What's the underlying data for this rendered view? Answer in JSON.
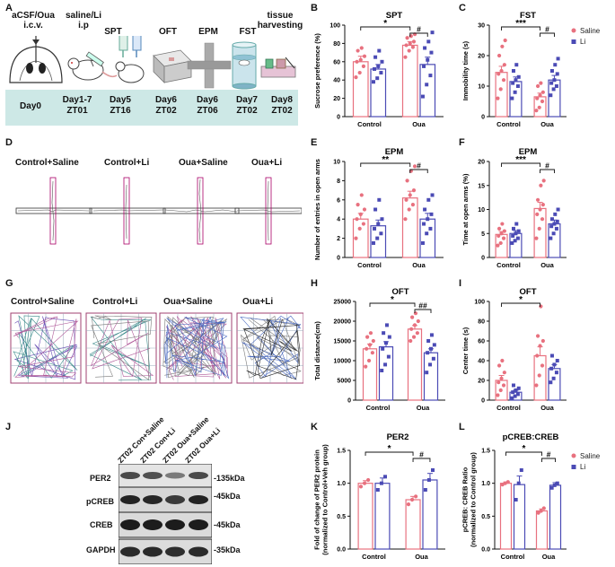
{
  "panels": {
    "A": "A",
    "B": "B",
    "C": "C",
    "D": "D",
    "E": "E",
    "F": "F",
    "G": "G",
    "H": "H",
    "I": "I",
    "J": "J",
    "K": "K",
    "L": "L"
  },
  "experiment": {
    "steps": [
      {
        "label": "aCSF/Oua\ni.c.v.",
        "day": "Day0",
        "zt": ""
      },
      {
        "label": "saline/Li\ni.p",
        "day": "Day1-7",
        "zt": "ZT01"
      },
      {
        "label": "SPT",
        "day": "Day5",
        "zt": "ZT16"
      },
      {
        "label": "OFT",
        "day": "Day6",
        "zt": "ZT02"
      },
      {
        "label": "EPM",
        "day": "Day6",
        "zt": "ZT06"
      },
      {
        "label": "FST",
        "day": "Day7",
        "zt": "ZT02"
      },
      {
        "label": "tissue\nharvesting",
        "day": "Day8",
        "zt": "ZT02"
      }
    ]
  },
  "group_labels": [
    "Control+Saline",
    "Control+Li",
    "Oua+Saline",
    "Oua+Li"
  ],
  "legend": {
    "saline": "Saline",
    "li": "Li"
  },
  "colors": {
    "saline": "#e8717f",
    "li": "#4b4bb5",
    "timeline_bg": "#cde8e6"
  },
  "blot": {
    "lanes": [
      "ZT02 Con+Saline",
      "ZT02 Con+Li",
      "ZT02 Oua+Saline",
      "ZT02 Oua+Li"
    ],
    "rows": [
      {
        "name": "PER2",
        "kda": "-135kDa"
      },
      {
        "name": "pCREB",
        "kda": "-45kDa"
      },
      {
        "name": "CREB",
        "kda": "-45kDa"
      },
      {
        "name": "GAPDH",
        "kda": "-35kDa"
      }
    ]
  },
  "chart_data": [
    {
      "id": "B",
      "type": "bar",
      "title": "SPT",
      "ylabel": "Sucrose preference (%)",
      "categories": [
        "Control",
        "Oua"
      ],
      "ylim": [
        0,
        100
      ],
      "yticks": [
        0,
        20,
        40,
        60,
        80,
        100
      ],
      "series": [
        {
          "name": "Saline",
          "values": [
            60,
            78
          ]
        },
        {
          "name": "Li",
          "values": [
            52,
            57
          ]
        }
      ],
      "errors": {
        "Saline": [
          6,
          4
        ],
        "Li": [
          5,
          8
        ]
      },
      "points": {
        "Saline": [
          [
            43,
            48,
            55,
            60,
            62,
            66,
            72,
            75
          ],
          [
            65,
            72,
            76,
            78,
            80,
            82,
            86,
            88,
            90
          ]
        ],
        "Li": [
          [
            38,
            42,
            48,
            52,
            55,
            60,
            65,
            72
          ],
          [
            22,
            35,
            45,
            55,
            62,
            70,
            75,
            82,
            92
          ]
        ]
      },
      "sig": [
        {
          "label": "*",
          "text_pos": "left"
        },
        {
          "label": "#",
          "text_pos": "right"
        }
      ]
    },
    {
      "id": "C",
      "type": "bar",
      "title": "FST",
      "ylabel": "Immobility time (s)",
      "categories": [
        "Control",
        "Oua"
      ],
      "ylim": [
        0,
        30
      ],
      "yticks": [
        0,
        10,
        20,
        30
      ],
      "series": [
        {
          "name": "Saline",
          "values": [
            14.5,
            6.5
          ]
        },
        {
          "name": "Li",
          "values": [
            11.5,
            12
          ]
        }
      ],
      "errors": {
        "Saline": [
          2,
          1.2
        ],
        "Li": [
          1.5,
          1.5
        ]
      },
      "points": {
        "Saline": [
          [
            6,
            9,
            12,
            14,
            15,
            17,
            20,
            23,
            25
          ],
          [
            2,
            3,
            5,
            6,
            7,
            8,
            10,
            11
          ]
        ],
        "Li": [
          [
            6,
            8,
            10,
            11,
            12,
            13,
            15,
            17
          ],
          [
            7,
            9,
            10,
            11,
            12,
            14,
            15,
            17,
            19
          ]
        ]
      },
      "sig": [
        {
          "label": "***",
          "text_pos": "left"
        },
        {
          "label": "#",
          "text_pos": "right"
        }
      ]
    },
    {
      "id": "E",
      "type": "bar",
      "title": "EPM",
      "ylabel": "Number of entries in open arms",
      "categories": [
        "Control",
        "Oua"
      ],
      "ylim": [
        0,
        10
      ],
      "yticks": [
        0,
        2,
        4,
        6,
        8,
        10
      ],
      "series": [
        {
          "name": "Saline",
          "values": [
            4,
            6.2
          ]
        },
        {
          "name": "Li",
          "values": [
            3.3,
            4
          ]
        }
      ],
      "errors": {
        "Saline": [
          0.6,
          0.7
        ],
        "Li": [
          0.6,
          0.6
        ]
      },
      "points": {
        "Saline": [
          [
            2,
            3,
            3.5,
            4,
            4.5,
            5,
            5.5,
            6.5
          ],
          [
            4,
            5,
            5.5,
            6,
            6.5,
            7,
            8,
            9,
            9.5
          ]
        ],
        "Li": [
          [
            1.5,
            2,
            2.5,
            3,
            3.5,
            4,
            5,
            6
          ],
          [
            1.5,
            2.5,
            3,
            3.5,
            4,
            4.5,
            5,
            6,
            6.5
          ]
        ]
      },
      "sig": [
        {
          "label": "**",
          "text_pos": "left"
        },
        {
          "label": "#",
          "text_pos": "right"
        }
      ]
    },
    {
      "id": "F",
      "type": "bar",
      "title": "EPM",
      "ylabel": "Time at open arms (%)",
      "categories": [
        "Control",
        "Oua"
      ],
      "ylim": [
        0,
        20
      ],
      "yticks": [
        0,
        5,
        10,
        15,
        20
      ],
      "series": [
        {
          "name": "Saline",
          "values": [
            4.8,
            10.2
          ]
        },
        {
          "name": "Li",
          "values": [
            5,
            7
          ]
        }
      ],
      "errors": {
        "Saline": [
          0.6,
          1.3
        ],
        "Li": [
          0.6,
          0.8
        ]
      },
      "points": {
        "Saline": [
          [
            2.5,
            3,
            4,
            4.5,
            5,
            5.5,
            6,
            7
          ],
          [
            4,
            6,
            8,
            9,
            10,
            11,
            12,
            15,
            16
          ]
        ],
        "Li": [
          [
            3,
            3.5,
            4,
            4.5,
            5,
            5.5,
            6,
            7
          ],
          [
            4,
            5,
            6,
            6.5,
            7,
            7.5,
            8,
            9,
            10
          ]
        ]
      },
      "sig": [
        {
          "label": "***",
          "text_pos": "left"
        },
        {
          "label": "#",
          "text_pos": "right"
        }
      ]
    },
    {
      "id": "H",
      "type": "bar",
      "title": "OFT",
      "ylabel": "Total distance(cm)",
      "categories": [
        "Control",
        "Oua"
      ],
      "ylim": [
        0,
        25000
      ],
      "yticks": [
        0,
        5000,
        10000,
        15000,
        20000,
        25000
      ],
      "series": [
        {
          "name": "Saline",
          "values": [
            13000,
            18000
          ]
        },
        {
          "name": "Li",
          "values": [
            13500,
            12000
          ]
        }
      ],
      "errors": {
        "Saline": [
          1200,
          900
        ],
        "Li": [
          1300,
          1000
        ]
      },
      "points": {
        "Saline": [
          [
            8500,
            10000,
            12000,
            13000,
            14000,
            15000,
            16000,
            17000
          ],
          [
            15000,
            16000,
            17000,
            18000,
            19000,
            20000,
            21000,
            22000
          ]
        ],
        "Li": [
          [
            7500,
            9000,
            11000,
            13000,
            14500,
            16000,
            17000,
            19000
          ],
          [
            7000,
            9000,
            10500,
            12000,
            13000,
            14000,
            15000,
            16500
          ]
        ]
      },
      "sig": [
        {
          "label": "*",
          "text_pos": "left"
        },
        {
          "label": "##",
          "text_pos": "right"
        }
      ]
    },
    {
      "id": "I",
      "type": "bar",
      "title": "OFT",
      "ylabel": "Center time (s)",
      "categories": [
        "Control",
        "Oua"
      ],
      "ylim": [
        0,
        100
      ],
      "yticks": [
        0,
        20,
        40,
        60,
        80,
        100
      ],
      "series": [
        {
          "name": "Saline",
          "values": [
            20,
            45
          ]
        },
        {
          "name": "Li",
          "values": [
            8,
            32
          ]
        }
      ],
      "errors": {
        "Saline": [
          5,
          9
        ],
        "Li": [
          2,
          4
        ]
      },
      "points": {
        "Saline": [
          [
            5,
            10,
            15,
            18,
            22,
            28,
            35,
            40
          ],
          [
            15,
            25,
            35,
            45,
            55,
            60,
            65,
            95
          ]
        ],
        "Li": [
          [
            2,
            4,
            6,
            8,
            10,
            12,
            15
          ],
          [
            18,
            22,
            28,
            32,
            36,
            40,
            45
          ]
        ]
      },
      "sig": [
        {
          "label": "*",
          "text_pos": "left"
        }
      ]
    },
    {
      "id": "K",
      "type": "bar",
      "title": "PER2",
      "ylabel": "Fold of change of PER2 protein\n(normalized to Control+Veh group)",
      "categories": [
        "Control",
        "Oua"
      ],
      "ylim": [
        0,
        1.5
      ],
      "yticks": [
        0.0,
        0.5,
        1.0,
        1.5
      ],
      "series": [
        {
          "name": "Saline",
          "values": [
            1.0,
            0.75
          ]
        },
        {
          "name": "Li",
          "values": [
            1.0,
            1.05
          ]
        }
      ],
      "errors": {
        "Saline": [
          0.04,
          0.05
        ],
        "Li": [
          0.08,
          0.1
        ]
      },
      "points": {
        "Saline": [
          [
            0.95,
            1.0,
            1.05
          ],
          [
            0.68,
            0.75,
            0.8
          ]
        ],
        "Li": [
          [
            0.9,
            1.0,
            1.1
          ],
          [
            0.9,
            1.05,
            1.2
          ]
        ]
      },
      "sig": [
        {
          "label": "*",
          "text_pos": "left"
        },
        {
          "label": "#",
          "text_pos": "right"
        }
      ]
    },
    {
      "id": "L",
      "type": "bar",
      "title": "pCREB:CREB",
      "ylabel": "pCREB: CREB Ratio\n(normalized to Control group)",
      "categories": [
        "Control",
        "Oua"
      ],
      "ylim": [
        0,
        1.5
      ],
      "yticks": [
        0.0,
        0.5,
        1.0,
        1.5
      ],
      "series": [
        {
          "name": "Saline",
          "values": [
            1.0,
            0.58
          ]
        },
        {
          "name": "Li",
          "values": [
            0.98,
            0.97
          ]
        }
      ],
      "errors": {
        "Saline": [
          0.02,
          0.03
        ],
        "Li": [
          0.13,
          0.04
        ]
      },
      "points": {
        "Saline": [
          [
            0.98,
            1.0,
            1.02
          ],
          [
            0.55,
            0.58,
            0.62
          ]
        ],
        "Li": [
          [
            0.75,
            1.0,
            1.2
          ],
          [
            0.93,
            0.97,
            1.0
          ]
        ]
      },
      "sig": [
        {
          "label": "*",
          "text_pos": "left"
        },
        {
          "label": "#",
          "text_pos": "right"
        }
      ]
    }
  ]
}
